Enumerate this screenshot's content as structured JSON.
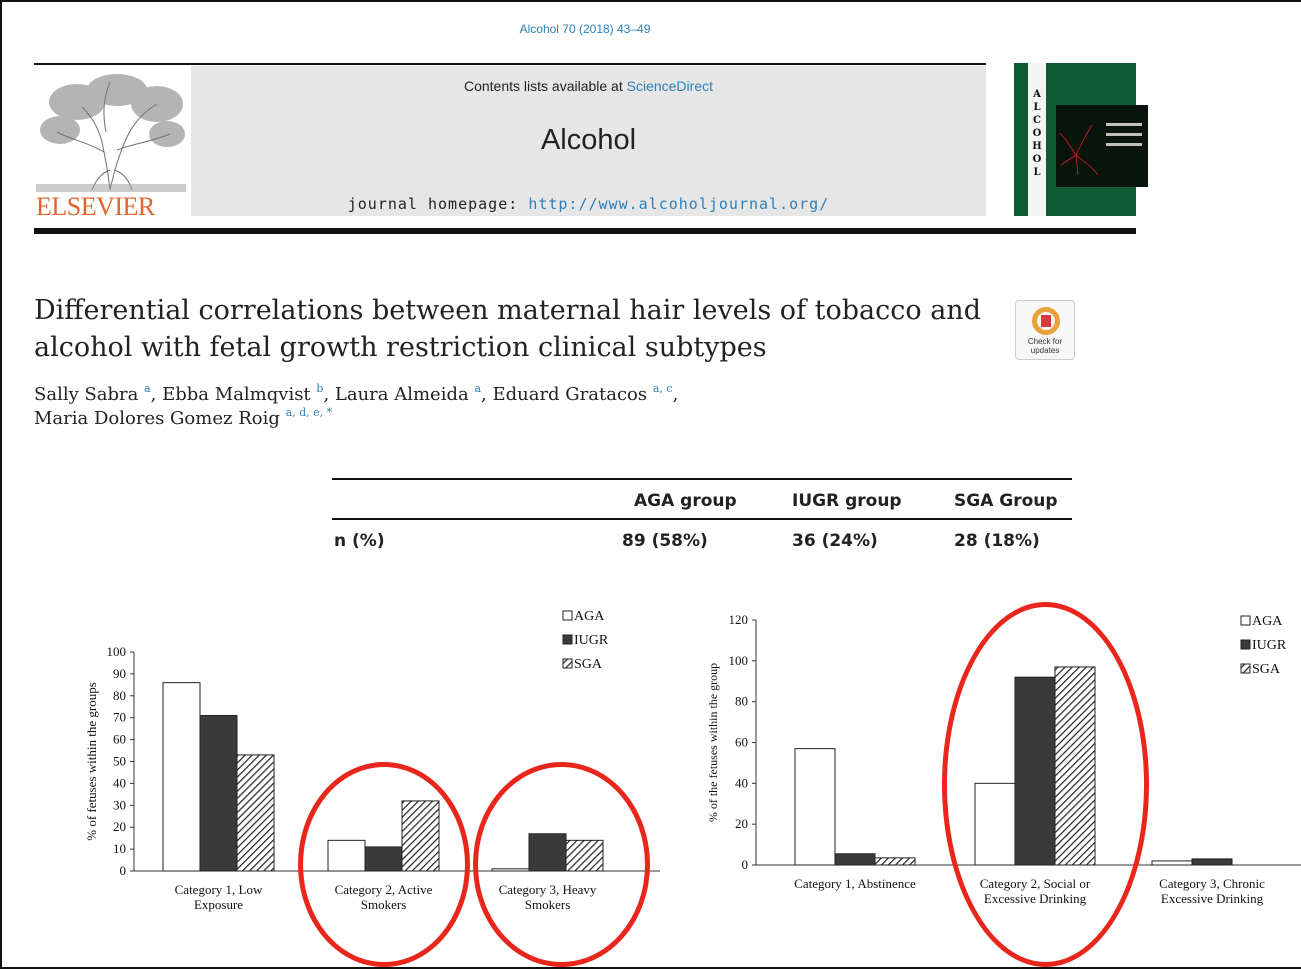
{
  "header": {
    "citation": "Alcohol 70 (2018) 43–49",
    "contents_prefix": "Contents lists available at ",
    "contents_link": "ScienceDirect",
    "journal_name": "Alcohol",
    "homepage_prefix": "journal homepage: ",
    "homepage_url": "http://www.alcoholjournal.org/",
    "publisher": "ELSEVIER",
    "cover_letters": "ALCOHOL"
  },
  "badge": {
    "line1": "Check for",
    "line2": "updates"
  },
  "article": {
    "title": "Differential correlations between maternal hair levels of tobacco and alcohol with fetal growth restriction clinical subtypes",
    "authors": [
      {
        "name": "Sally Sabra",
        "aff": "a",
        "sep": ", "
      },
      {
        "name": "Ebba Malmqvist",
        "aff": "b",
        "sep": ", "
      },
      {
        "name": "Laura Almeida",
        "aff": "a",
        "sep": ", "
      },
      {
        "name": "Eduard Gratacos",
        "aff": "a, c",
        "sep": ","
      },
      {
        "name": "Maria Dolores Gomez Roig",
        "aff": "a, d, e, *",
        "sep": ""
      }
    ]
  },
  "table": {
    "headers": [
      "",
      "AGA group",
      "IUGR group",
      "SGA Group"
    ],
    "row": [
      "n (%)",
      "89 (58%)",
      "36 (24%)",
      "28 (18%)"
    ]
  },
  "chart_data": [
    {
      "type": "bar",
      "ylabel": "% of fetuses within the groups",
      "ylim": [
        0,
        100
      ],
      "yticks": [
        0,
        10,
        20,
        30,
        40,
        50,
        60,
        70,
        80,
        90,
        100
      ],
      "categories": [
        "Category 1, Low\nExposure",
        "Category 2, Active\nSmokers",
        "Category 3, Heavy\nSmokers"
      ],
      "series": [
        {
          "name": "AGA",
          "values": [
            86,
            14,
            1
          ]
        },
        {
          "name": "IUGR",
          "values": [
            71,
            11,
            17
          ]
        },
        {
          "name": "SGA",
          "values": [
            53,
            32,
            14
          ]
        }
      ],
      "legend_position": "top-right",
      "grid": false,
      "colors": {
        "AGA": "#ffffff",
        "IUGR": "#3a3a3a",
        "SGA": "hatched"
      },
      "highlighted_categories": [
        1,
        2
      ]
    },
    {
      "type": "bar",
      "ylabel": "% of the fetuses within the group",
      "ylim": [
        0,
        120
      ],
      "yticks": [
        0,
        20,
        40,
        60,
        80,
        100,
        120
      ],
      "categories": [
        "Category 1, Abstinence",
        "Category 2, Social or\nExcessive Drinking",
        "Category 3, Chronic\nExcessive Drinking"
      ],
      "series": [
        {
          "name": "AGA",
          "values": [
            57,
            40,
            2
          ]
        },
        {
          "name": "IUGR",
          "values": [
            5.5,
            92,
            3
          ]
        },
        {
          "name": "SGA",
          "values": [
            3.5,
            97,
            0
          ]
        }
      ],
      "legend_position": "top-right",
      "grid": false,
      "colors": {
        "AGA": "#ffffff",
        "IUGR": "#3a3a3a",
        "SGA": "hatched"
      },
      "highlighted_categories": [
        1
      ]
    }
  ],
  "annotation_color": "#e8261c"
}
